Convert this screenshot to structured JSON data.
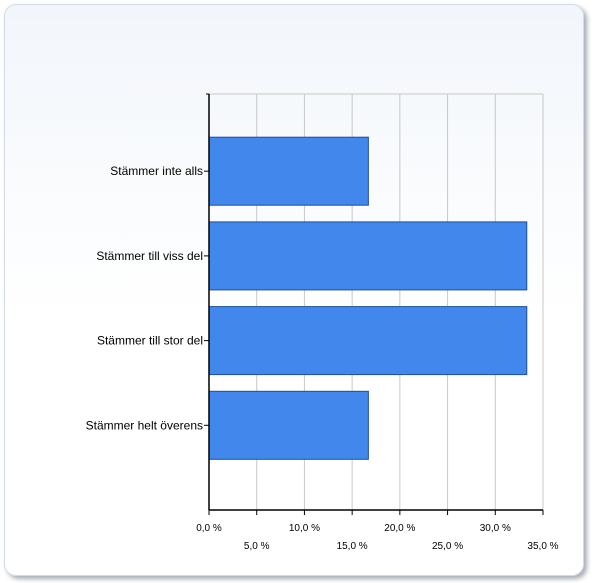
{
  "chart_data": {
    "type": "bar",
    "orientation": "horizontal",
    "title": "",
    "xlabel": "",
    "ylabel": "",
    "categories": [
      "Stämmer inte alls",
      "Stämmer till viss del",
      "Stämmer till stor del",
      "Stämmer helt överens"
    ],
    "values": [
      16.7,
      33.3,
      33.3,
      16.7
    ],
    "xlim": [
      0,
      35
    ],
    "xticks": [
      0,
      5,
      10,
      15,
      20,
      25,
      30,
      35
    ],
    "xtick_labels": [
      "0,0 %",
      "5,0 %",
      "10,0 %",
      "15,0 %",
      "20,0 %",
      "25,0 %",
      "30,0 %",
      "35,0 %"
    ],
    "grid": true,
    "legend": "none",
    "colors": {
      "bar_fill": "#4287ec",
      "bar_stroke": "#1f4f9a",
      "grid": "#c8c8c8",
      "axis": "#000000"
    }
  }
}
